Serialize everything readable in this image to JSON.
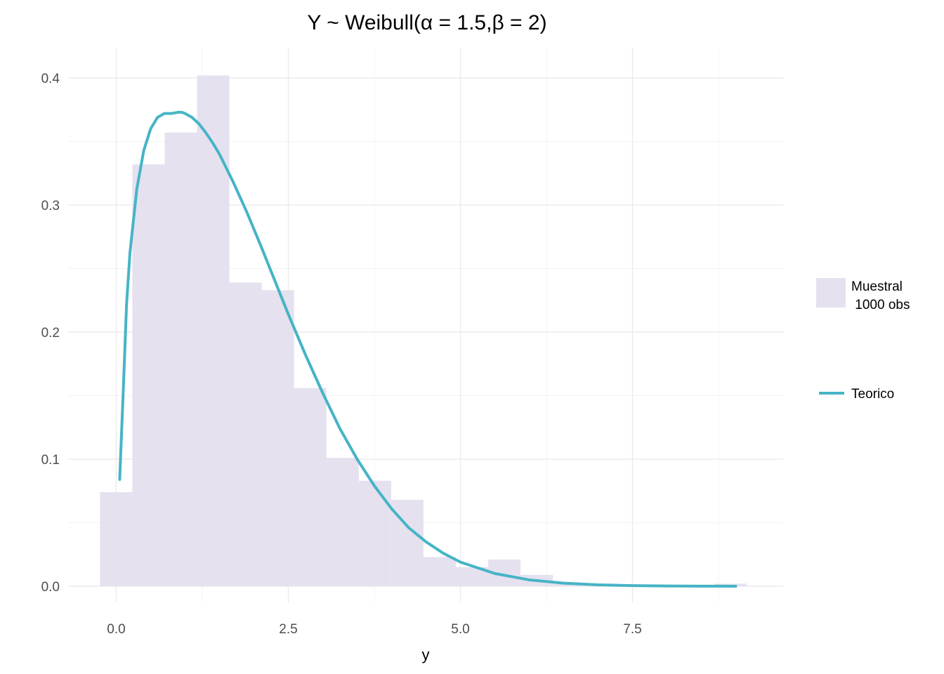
{
  "chart_data": {
    "type": "bar",
    "title": "Y ~ Weibull(α = 1.5,β = 2)",
    "xlabel": "y",
    "ylabel": "",
    "xlim": [
      -0.3,
      9.2
    ],
    "ylim": [
      0,
      0.4
    ],
    "x_ticks": [
      0.0,
      2.5,
      5.0,
      7.5
    ],
    "x_tick_labels": [
      "0.0",
      "2.5",
      "5.0",
      "7.5"
    ],
    "y_ticks": [
      0.0,
      0.1,
      0.2,
      0.3,
      0.4
    ],
    "y_tick_labels": [
      "0.0",
      "0.1",
      "0.2",
      "0.3",
      "0.4"
    ],
    "grid": true,
    "legend_position": "right",
    "colors": {
      "histogram": "#e6e1ef",
      "curve": "#46b4c6",
      "grid": "#ebebeb"
    },
    "histogram": {
      "name": "Muestral\n 1000 obs",
      "label_lines": [
        "Muestral",
        " 1000 obs"
      ],
      "bin_width": 0.47,
      "bin_centers": [
        -0.0015,
        0.4685,
        0.9385,
        1.4085,
        1.8785,
        2.3485,
        2.8185,
        3.2885,
        3.7585,
        4.2285,
        4.6985,
        5.1685,
        5.6385,
        6.1085,
        6.5785,
        7.0485,
        7.5185,
        7.9885,
        8.4585,
        8.9285
      ],
      "density": [
        0.074,
        0.332,
        0.357,
        0.402,
        0.239,
        0.233,
        0.156,
        0.101,
        0.083,
        0.068,
        0.023,
        0.015,
        0.021,
        0.009,
        0.002,
        0.001,
        0.001,
        0.0005,
        0.0005,
        0.002
      ]
    },
    "curve": {
      "name": "Teorico",
      "x": [
        0.05,
        0.1,
        0.15,
        0.2,
        0.3,
        0.4,
        0.5,
        0.6,
        0.7,
        0.8,
        0.9,
        0.95,
        1.0,
        1.1,
        1.2,
        1.3,
        1.4,
        1.5,
        1.7,
        1.9,
        2.1,
        2.3,
        2.5,
        2.75,
        3.0,
        3.25,
        3.5,
        3.75,
        4.0,
        4.25,
        4.5,
        4.75,
        5.0,
        5.5,
        6.0,
        6.5,
        7.0,
        7.5,
        8.0,
        8.5,
        9.0
      ],
      "y": [
        0.084,
        0.151,
        0.222,
        0.263,
        0.313,
        0.343,
        0.36,
        0.369,
        0.372,
        0.372,
        0.373,
        0.373,
        0.372,
        0.369,
        0.364,
        0.357,
        0.349,
        0.34,
        0.318,
        0.294,
        0.268,
        0.241,
        0.214,
        0.182,
        0.152,
        0.124,
        0.1,
        0.079,
        0.061,
        0.046,
        0.035,
        0.026,
        0.019,
        0.01,
        0.005,
        0.0024,
        0.0011,
        0.0005,
        0.0002,
        0.0001,
        0.0
      ]
    }
  }
}
